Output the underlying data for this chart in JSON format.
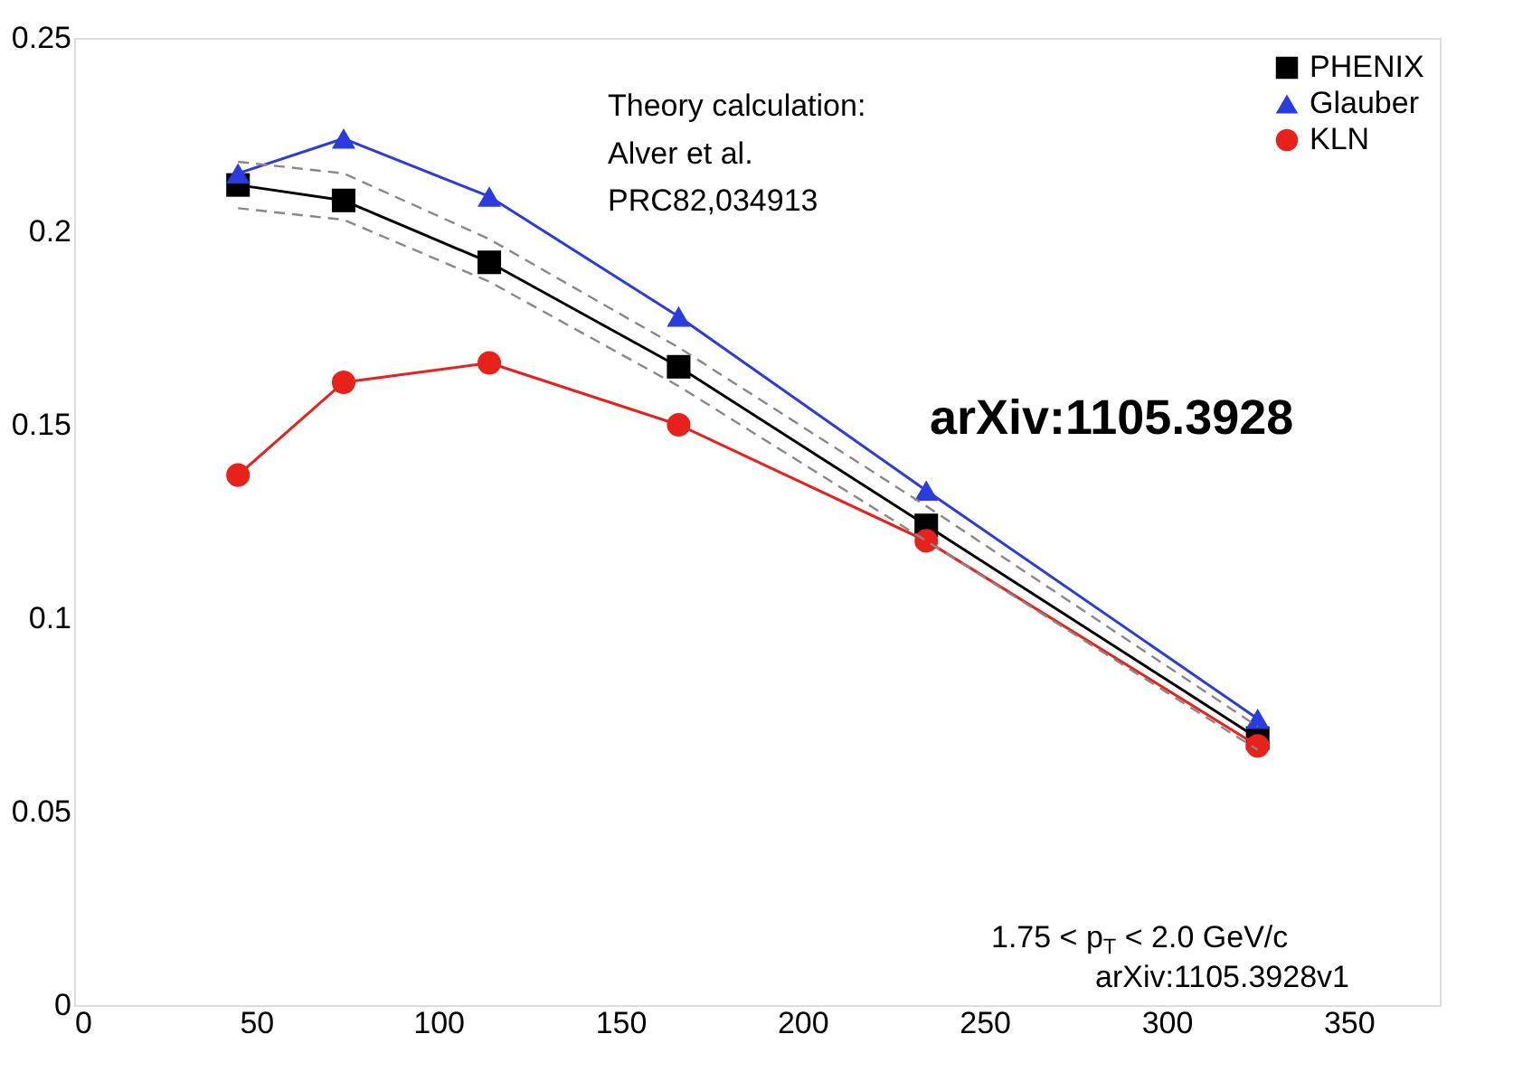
{
  "chart_data": {
    "type": "line",
    "x": [
      45,
      74,
      114,
      166,
      234,
      325
    ],
    "series": [
      {
        "name": "PHENIX",
        "color": "#000000",
        "marker": "square",
        "values": [
          0.212,
          0.208,
          0.192,
          0.165,
          0.124,
          0.069
        ]
      },
      {
        "name": "Glauber",
        "color": "#2a3be0",
        "marker": "triangle",
        "values": [
          0.215,
          0.224,
          0.209,
          0.178,
          0.133,
          0.074
        ]
      },
      {
        "name": "KLN",
        "color": "#e8211b",
        "marker": "circle",
        "values": [
          0.137,
          0.161,
          0.166,
          0.15,
          0.12,
          0.067
        ]
      },
      {
        "color": "#888888",
        "marker": "none",
        "line_style": "dashed",
        "values": [
          0.218,
          0.215,
          0.198,
          0.17,
          0.129,
          0.072
        ]
      },
      {
        "color": "#888888",
        "marker": "none",
        "line_style": "dashed",
        "values": [
          0.206,
          0.203,
          0.187,
          0.16,
          0.12,
          0.066
        ]
      }
    ],
    "xlim": [
      0,
      375
    ],
    "xticks": [
      0,
      50,
      100,
      150,
      200,
      250,
      300,
      350
    ],
    "ylim": [
      0,
      0.25
    ],
    "yticks": [
      0,
      0.05,
      0.1,
      0.15,
      0.2,
      0.25
    ],
    "grid": false,
    "legend": "top right",
    "line_style": "solid",
    "annotations": [
      "Theory calculation:\nAlver et al.\nPRC82,034913",
      "arXiv:1105.3928",
      "1.75 < p$_{T}$ < 2.0 GeV/c",
      "arXiv:1105.3928v1"
    ]
  }
}
